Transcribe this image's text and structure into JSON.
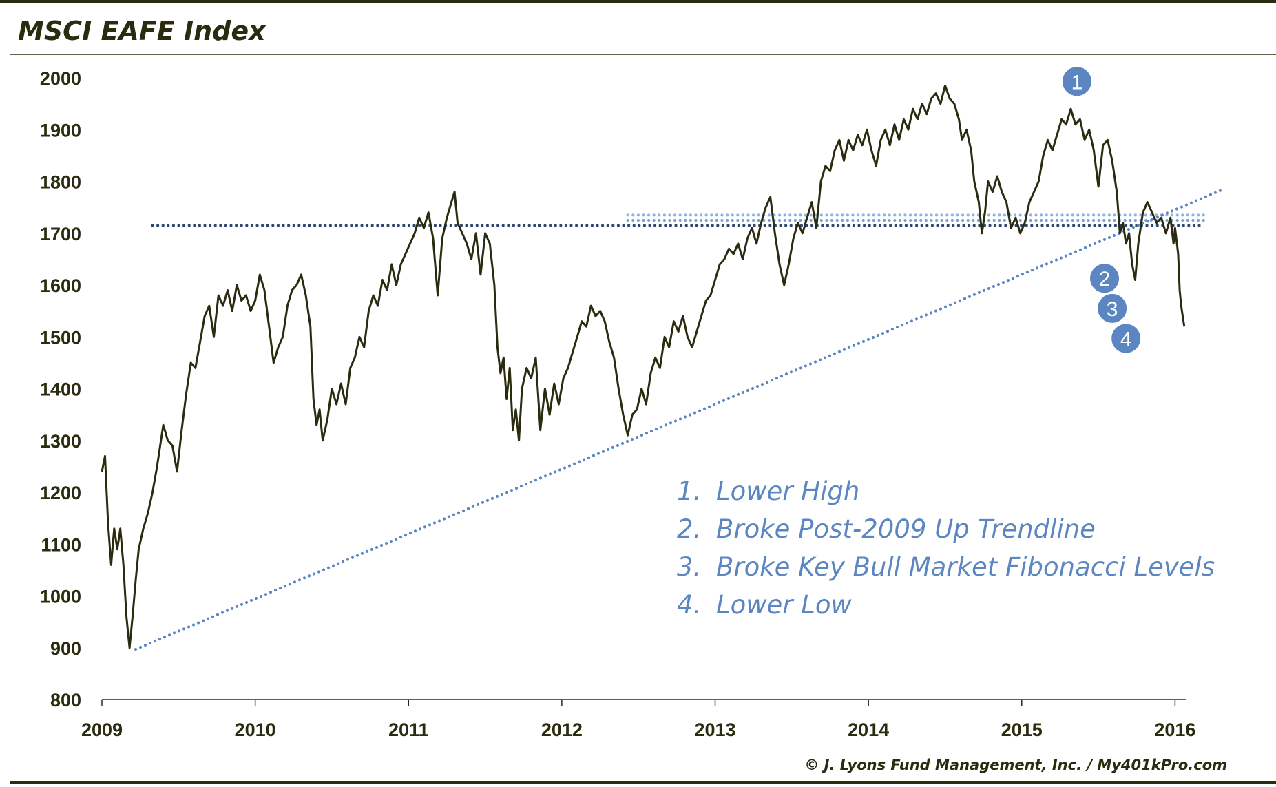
{
  "chart_data": {
    "type": "line",
    "title": "MSCI EAFE Index",
    "credit": "© J. Lyons Fund Management, Inc. / My401kPro.com",
    "ylim": [
      800,
      2000
    ],
    "yticks": [
      2000,
      1900,
      1800,
      1700,
      1600,
      1500,
      1400,
      1300,
      1200,
      1100,
      1000,
      900,
      800
    ],
    "xlim": [
      2009.0,
      2016.07
    ],
    "xticks": [
      {
        "value": 2009,
        "label": "2009"
      },
      {
        "value": 2010,
        "label": "2010"
      },
      {
        "value": 2011,
        "label": "2011"
      },
      {
        "value": 2012,
        "label": "2012"
      },
      {
        "value": 2013,
        "label": "2013"
      },
      {
        "value": 2014,
        "label": "2014"
      },
      {
        "value": 2015,
        "label": "2015"
      },
      {
        "value": 2016,
        "label": "2016"
      }
    ],
    "grid": false,
    "series": [
      {
        "color": "#2b2b10",
        "points": [
          [
            2009.0,
            1240
          ],
          [
            2009.02,
            1270
          ],
          [
            2009.04,
            1140
          ],
          [
            2009.06,
            1060
          ],
          [
            2009.08,
            1130
          ],
          [
            2009.1,
            1090
          ],
          [
            2009.12,
            1130
          ],
          [
            2009.14,
            1060
          ],
          [
            2009.16,
            960
          ],
          [
            2009.18,
            900
          ],
          [
            2009.2,
            960
          ],
          [
            2009.22,
            1030
          ],
          [
            2009.24,
            1090
          ],
          [
            2009.27,
            1130
          ],
          [
            2009.3,
            1160
          ],
          [
            2009.33,
            1200
          ],
          [
            2009.36,
            1250
          ],
          [
            2009.4,
            1330
          ],
          [
            2009.43,
            1300
          ],
          [
            2009.46,
            1290
          ],
          [
            2009.49,
            1240
          ],
          [
            2009.52,
            1320
          ],
          [
            2009.55,
            1390
          ],
          [
            2009.58,
            1450
          ],
          [
            2009.61,
            1440
          ],
          [
            2009.64,
            1490
          ],
          [
            2009.67,
            1540
          ],
          [
            2009.7,
            1560
          ],
          [
            2009.73,
            1500
          ],
          [
            2009.76,
            1580
          ],
          [
            2009.79,
            1560
          ],
          [
            2009.82,
            1590
          ],
          [
            2009.85,
            1550
          ],
          [
            2009.88,
            1600
          ],
          [
            2009.91,
            1570
          ],
          [
            2009.94,
            1580
          ],
          [
            2009.97,
            1550
          ],
          [
            2010.0,
            1570
          ],
          [
            2010.03,
            1620
          ],
          [
            2010.06,
            1590
          ],
          [
            2010.09,
            1520
          ],
          [
            2010.12,
            1450
          ],
          [
            2010.15,
            1480
          ],
          [
            2010.18,
            1500
          ],
          [
            2010.21,
            1560
          ],
          [
            2010.24,
            1590
          ],
          [
            2010.27,
            1600
          ],
          [
            2010.3,
            1620
          ],
          [
            2010.33,
            1580
          ],
          [
            2010.36,
            1520
          ],
          [
            2010.38,
            1380
          ],
          [
            2010.4,
            1330
          ],
          [
            2010.42,
            1360
          ],
          [
            2010.44,
            1300
          ],
          [
            2010.47,
            1340
          ],
          [
            2010.5,
            1400
          ],
          [
            2010.53,
            1370
          ],
          [
            2010.56,
            1410
          ],
          [
            2010.59,
            1370
          ],
          [
            2010.62,
            1440
          ],
          [
            2010.65,
            1460
          ],
          [
            2010.68,
            1500
          ],
          [
            2010.71,
            1480
          ],
          [
            2010.74,
            1550
          ],
          [
            2010.77,
            1580
          ],
          [
            2010.8,
            1560
          ],
          [
            2010.83,
            1610
          ],
          [
            2010.86,
            1590
          ],
          [
            2010.89,
            1640
          ],
          [
            2010.92,
            1600
          ],
          [
            2010.95,
            1640
          ],
          [
            2010.98,
            1660
          ],
          [
            2011.01,
            1680
          ],
          [
            2011.04,
            1700
          ],
          [
            2011.07,
            1730
          ],
          [
            2011.1,
            1710
          ],
          [
            2011.13,
            1740
          ],
          [
            2011.16,
            1690
          ],
          [
            2011.19,
            1580
          ],
          [
            2011.22,
            1690
          ],
          [
            2011.25,
            1730
          ],
          [
            2011.28,
            1760
          ],
          [
            2011.3,
            1780
          ],
          [
            2011.32,
            1720
          ],
          [
            2011.35,
            1700
          ],
          [
            2011.38,
            1680
          ],
          [
            2011.41,
            1650
          ],
          [
            2011.44,
            1700
          ],
          [
            2011.47,
            1620
          ],
          [
            2011.5,
            1700
          ],
          [
            2011.53,
            1680
          ],
          [
            2011.56,
            1600
          ],
          [
            2011.58,
            1480
          ],
          [
            2011.6,
            1430
          ],
          [
            2011.62,
            1460
          ],
          [
            2011.64,
            1380
          ],
          [
            2011.66,
            1440
          ],
          [
            2011.68,
            1320
          ],
          [
            2011.7,
            1360
          ],
          [
            2011.72,
            1300
          ],
          [
            2011.74,
            1400
          ],
          [
            2011.77,
            1440
          ],
          [
            2011.8,
            1420
          ],
          [
            2011.83,
            1460
          ],
          [
            2011.86,
            1320
          ],
          [
            2011.89,
            1400
          ],
          [
            2011.92,
            1350
          ],
          [
            2011.95,
            1410
          ],
          [
            2011.98,
            1370
          ],
          [
            2012.01,
            1420
          ],
          [
            2012.04,
            1440
          ],
          [
            2012.07,
            1470
          ],
          [
            2012.1,
            1500
          ],
          [
            2012.13,
            1530
          ],
          [
            2012.16,
            1520
          ],
          [
            2012.19,
            1560
          ],
          [
            2012.22,
            1540
          ],
          [
            2012.25,
            1550
          ],
          [
            2012.28,
            1530
          ],
          [
            2012.31,
            1490
          ],
          [
            2012.34,
            1460
          ],
          [
            2012.37,
            1400
          ],
          [
            2012.4,
            1350
          ],
          [
            2012.43,
            1310
          ],
          [
            2012.46,
            1350
          ],
          [
            2012.49,
            1360
          ],
          [
            2012.52,
            1400
          ],
          [
            2012.55,
            1370
          ],
          [
            2012.58,
            1430
          ],
          [
            2012.61,
            1460
          ],
          [
            2012.64,
            1440
          ],
          [
            2012.67,
            1500
          ],
          [
            2012.7,
            1480
          ],
          [
            2012.73,
            1530
          ],
          [
            2012.76,
            1510
          ],
          [
            2012.79,
            1540
          ],
          [
            2012.82,
            1500
          ],
          [
            2012.85,
            1480
          ],
          [
            2012.88,
            1510
          ],
          [
            2012.91,
            1540
          ],
          [
            2012.94,
            1570
          ],
          [
            2012.97,
            1580
          ],
          [
            2013.0,
            1610
          ],
          [
            2013.03,
            1640
          ],
          [
            2013.06,
            1650
          ],
          [
            2013.09,
            1670
          ],
          [
            2013.12,
            1660
          ],
          [
            2013.15,
            1680
          ],
          [
            2013.18,
            1650
          ],
          [
            2013.21,
            1690
          ],
          [
            2013.24,
            1710
          ],
          [
            2013.27,
            1680
          ],
          [
            2013.3,
            1720
          ],
          [
            2013.33,
            1750
          ],
          [
            2013.36,
            1770
          ],
          [
            2013.39,
            1700
          ],
          [
            2013.42,
            1640
          ],
          [
            2013.45,
            1600
          ],
          [
            2013.48,
            1640
          ],
          [
            2013.51,
            1690
          ],
          [
            2013.54,
            1720
          ],
          [
            2013.57,
            1700
          ],
          [
            2013.6,
            1730
          ],
          [
            2013.63,
            1760
          ],
          [
            2013.66,
            1710
          ],
          [
            2013.69,
            1800
          ],
          [
            2013.72,
            1830
          ],
          [
            2013.75,
            1820
          ],
          [
            2013.78,
            1860
          ],
          [
            2013.81,
            1880
          ],
          [
            2013.84,
            1840
          ],
          [
            2013.87,
            1880
          ],
          [
            2013.9,
            1860
          ],
          [
            2013.93,
            1890
          ],
          [
            2013.96,
            1870
          ],
          [
            2013.99,
            1900
          ],
          [
            2014.02,
            1860
          ],
          [
            2014.05,
            1830
          ],
          [
            2014.08,
            1880
          ],
          [
            2014.11,
            1900
          ],
          [
            2014.14,
            1870
          ],
          [
            2014.17,
            1910
          ],
          [
            2014.2,
            1880
          ],
          [
            2014.23,
            1920
          ],
          [
            2014.26,
            1900
          ],
          [
            2014.29,
            1940
          ],
          [
            2014.32,
            1920
          ],
          [
            2014.35,
            1950
          ],
          [
            2014.38,
            1930
          ],
          [
            2014.41,
            1960
          ],
          [
            2014.44,
            1970
          ],
          [
            2014.47,
            1950
          ],
          [
            2014.5,
            1985
          ],
          [
            2014.53,
            1960
          ],
          [
            2014.56,
            1950
          ],
          [
            2014.59,
            1920
          ],
          [
            2014.61,
            1880
          ],
          [
            2014.64,
            1900
          ],
          [
            2014.67,
            1860
          ],
          [
            2014.69,
            1800
          ],
          [
            2014.72,
            1760
          ],
          [
            2014.74,
            1700
          ],
          [
            2014.76,
            1740
          ],
          [
            2014.78,
            1800
          ],
          [
            2014.81,
            1780
          ],
          [
            2014.84,
            1810
          ],
          [
            2014.87,
            1780
          ],
          [
            2014.9,
            1760
          ],
          [
            2014.93,
            1710
          ],
          [
            2014.96,
            1730
          ],
          [
            2014.99,
            1700
          ],
          [
            2015.02,
            1720
          ],
          [
            2015.05,
            1760
          ],
          [
            2015.08,
            1780
          ],
          [
            2015.11,
            1800
          ],
          [
            2015.14,
            1850
          ],
          [
            2015.17,
            1880
          ],
          [
            2015.2,
            1860
          ],
          [
            2015.23,
            1890
          ],
          [
            2015.26,
            1920
          ],
          [
            2015.29,
            1910
          ],
          [
            2015.32,
            1940
          ],
          [
            2015.35,
            1910
          ],
          [
            2015.38,
            1920
          ],
          [
            2015.41,
            1880
          ],
          [
            2015.44,
            1900
          ],
          [
            2015.47,
            1860
          ],
          [
            2015.5,
            1790
          ],
          [
            2015.53,
            1870
          ],
          [
            2015.56,
            1880
          ],
          [
            2015.59,
            1840
          ],
          [
            2015.62,
            1780
          ],
          [
            2015.64,
            1700
          ],
          [
            2015.66,
            1720
          ],
          [
            2015.68,
            1680
          ],
          [
            2015.7,
            1700
          ],
          [
            2015.72,
            1640
          ],
          [
            2015.74,
            1610
          ],
          [
            2015.76,
            1680
          ],
          [
            2015.79,
            1740
          ],
          [
            2015.82,
            1760
          ],
          [
            2015.85,
            1740
          ],
          [
            2015.88,
            1720
          ],
          [
            2015.91,
            1730
          ],
          [
            2015.94,
            1700
          ],
          [
            2015.97,
            1730
          ],
          [
            2015.99,
            1680
          ],
          [
            2016.0,
            1710
          ],
          [
            2016.02,
            1660
          ],
          [
            2016.03,
            1590
          ],
          [
            2016.04,
            1560
          ],
          [
            2016.05,
            1540
          ],
          [
            2016.06,
            1520
          ]
        ]
      }
    ],
    "reference_lines": [
      {
        "style": "dotted",
        "color": "#2e4670",
        "points": [
          [
            2009.33,
            1715
          ],
          [
            2016.19,
            1715
          ]
        ]
      },
      {
        "style": "dotted",
        "color": "#8fb2de",
        "points": [
          [
            2012.43,
            1735
          ],
          [
            2016.19,
            1735
          ]
        ]
      },
      {
        "style": "dotted",
        "color": "#7a9fd1",
        "points": [
          [
            2012.43,
            1725
          ],
          [
            2016.19,
            1725
          ]
        ]
      },
      {
        "style": "dotted",
        "color": "#5b86c2",
        "points": [
          [
            2009.22,
            897
          ],
          [
            2016.3,
            1783
          ]
        ]
      }
    ],
    "markers": [
      {
        "label": "1",
        "x": 2015.36,
        "y": 1993
      },
      {
        "label": "2",
        "x": 2015.54,
        "y": 1613
      },
      {
        "label": "3",
        "x": 2015.59,
        "y": 1555
      },
      {
        "label": "4",
        "x": 2015.68,
        "y": 1497
      }
    ],
    "annotations": [
      {
        "number": "1.",
        "text": "Lower High"
      },
      {
        "number": "2.",
        "text": "Broke Post-2009 Up Trendline"
      },
      {
        "number": "3.",
        "text": "Broke Key Bull Market Fibonacci Levels"
      },
      {
        "number": "4.",
        "text": "Lower Low"
      }
    ]
  }
}
